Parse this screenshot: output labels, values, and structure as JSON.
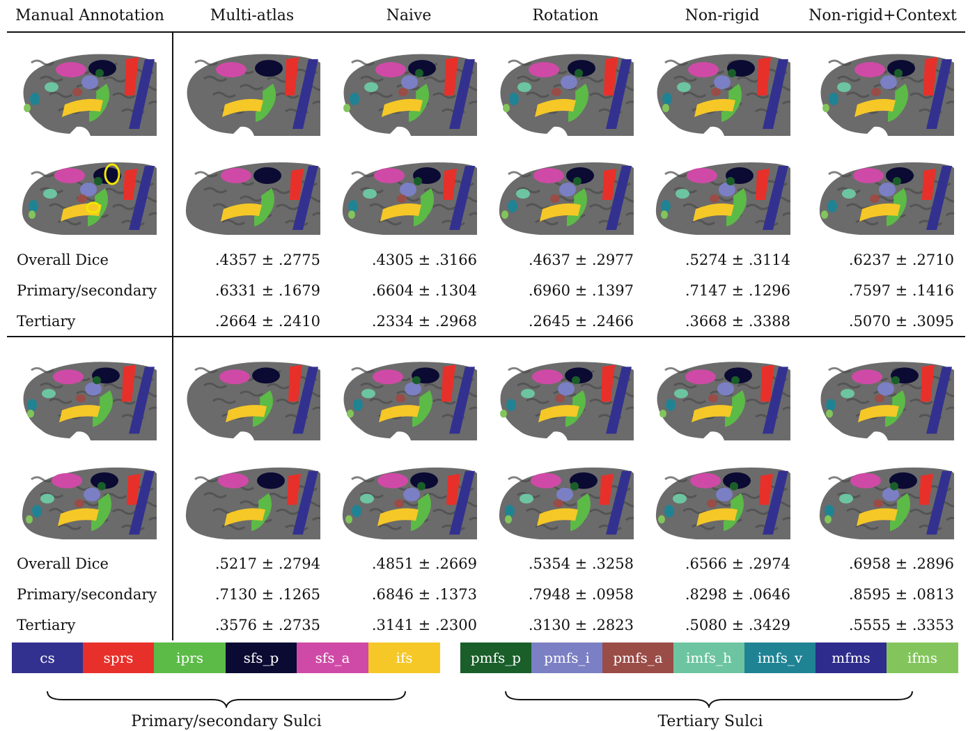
{
  "columns": [
    "Manual Annotation",
    "Multi-atlas",
    "Naive",
    "Rotation",
    "Non-rigid",
    "Non-rigid+Context"
  ],
  "sections": [
    {
      "rows": [
        {
          "label": "Overall Dice",
          "values": [
            ".4357 ± .2775",
            ".4305 ± .3166",
            ".4637 ± .2977",
            ".5274 ± .3114",
            ".6237 ± .2710"
          ]
        },
        {
          "label": "Primary/secondary",
          "values": [
            ".6331 ± .1679",
            ".6604 ± .1304",
            ".6960 ± .1397",
            ".7147 ± .1296",
            ".7597 ± .1416"
          ]
        },
        {
          "label": "Tertiary",
          "values": [
            ".2664 ± .2410",
            ".2334 ± .2968",
            ".2645 ± .2466",
            ".3668 ± .3388",
            ".5070 ± .3095"
          ]
        }
      ]
    },
    {
      "rows": [
        {
          "label": "Overall Dice",
          "values": [
            ".5217 ± .2794",
            ".4851 ± .2669",
            ".5354 ± .3258",
            ".6566 ± .2974",
            ".6958 ± .2896"
          ]
        },
        {
          "label": "Primary/secondary",
          "values": [
            ".7130 ± .1265",
            ".6846 ± .1373",
            ".7948 ± .0958",
            ".8298 ± .0646",
            ".8595 ± .0813"
          ]
        },
        {
          "label": "Tertiary",
          "values": [
            ".3576 ± .2735",
            ".3141 ± .2300",
            ".3130 ± .2823",
            ".5080 ± .3429",
            ".5555 ± .3353"
          ]
        }
      ]
    }
  ],
  "legend_primary": [
    {
      "label": "cs",
      "color": "#33318f"
    },
    {
      "label": "sprs",
      "color": "#e8302a"
    },
    {
      "label": "iprs",
      "color": "#5cba47"
    },
    {
      "label": "sfs_p",
      "color": "#0b0a33"
    },
    {
      "label": "sfs_a",
      "color": "#cf4aa6"
    },
    {
      "label": "ifs",
      "color": "#f5c827"
    }
  ],
  "legend_tertiary": [
    {
      "label": "pmfs_p",
      "color": "#1a5e2a"
    },
    {
      "label": "pmfs_i",
      "color": "#7b7fc4"
    },
    {
      "label": "pmfs_a",
      "color": "#9a4c47"
    },
    {
      "label": "imfs_h",
      "color": "#6cc5a0"
    },
    {
      "label": "imfs_v",
      "color": "#1f8394"
    },
    {
      "label": "mfms",
      "color": "#2e2c8c"
    },
    {
      "label": "ifms",
      "color": "#83c55c"
    }
  ],
  "group_labels": {
    "primary": "Primary/secondary Sulci",
    "tertiary": "Tertiary Sulci"
  },
  "colors": {
    "brain": "#6b6b6b",
    "brain_dark": "#4a4a4a",
    "annotation_circle": "#f2e600"
  }
}
